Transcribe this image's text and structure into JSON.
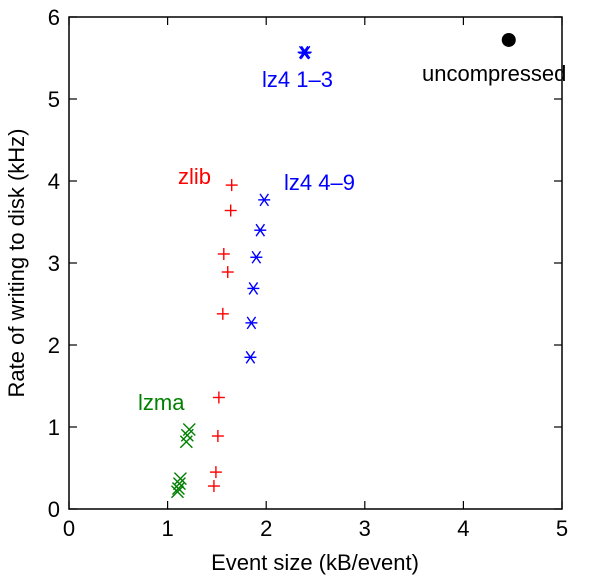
{
  "chart_data": {
    "type": "scatter",
    "xlabel": "Event size (kB/event)",
    "ylabel": "Rate of writing to disk (kHz)",
    "xlim": [
      0,
      5
    ],
    "ylim": [
      0,
      6
    ],
    "xticks": [
      "0",
      "1",
      "2",
      "3",
      "4",
      "5"
    ],
    "yticks": [
      "0",
      "1",
      "2",
      "3",
      "4",
      "5",
      "6"
    ],
    "grid": false,
    "series": [
      {
        "name": "uncompressed",
        "marker": "dot",
        "color": "#000000",
        "points": [
          [
            4.46,
            5.72
          ]
        ]
      },
      {
        "name": "lz4 1–3",
        "marker": "star",
        "color": "#0000ff",
        "points": [
          [
            2.38,
            5.57
          ],
          [
            2.39,
            5.56
          ],
          [
            2.4,
            5.57
          ]
        ]
      },
      {
        "name": "lz4 4–9",
        "marker": "star",
        "color": "#0000ff",
        "points": [
          [
            1.98,
            3.77
          ],
          [
            1.94,
            3.4
          ],
          [
            1.9,
            3.07
          ],
          [
            1.87,
            2.69
          ],
          [
            1.85,
            2.27
          ],
          [
            1.84,
            1.85
          ]
        ]
      },
      {
        "name": "zlib",
        "marker": "plus",
        "color": "#ff0000",
        "points": [
          [
            1.65,
            3.95
          ],
          [
            1.64,
            3.64
          ],
          [
            1.57,
            3.11
          ],
          [
            1.61,
            2.89
          ],
          [
            1.56,
            2.38
          ],
          [
            1.52,
            1.36
          ],
          [
            1.51,
            0.89
          ],
          [
            1.49,
            0.45
          ],
          [
            1.47,
            0.28
          ]
        ]
      },
      {
        "name": "lzma",
        "marker": "x",
        "color": "#008000",
        "points": [
          [
            1.22,
            0.97
          ],
          [
            1.2,
            0.9
          ],
          [
            1.19,
            0.82
          ],
          [
            1.13,
            0.37
          ],
          [
            1.12,
            0.31
          ],
          [
            1.11,
            0.25
          ],
          [
            1.1,
            0.21
          ]
        ]
      }
    ],
    "annotations": [
      {
        "text": "uncompressed",
        "color": "#000000"
      },
      {
        "text": "lz4 1–3",
        "color": "#0000ff"
      },
      {
        "text": "lz4 4–9",
        "color": "#0000ff"
      },
      {
        "text": "zlib",
        "color": "#ff0000"
      },
      {
        "text": "lzma",
        "color": "#008000"
      }
    ]
  }
}
